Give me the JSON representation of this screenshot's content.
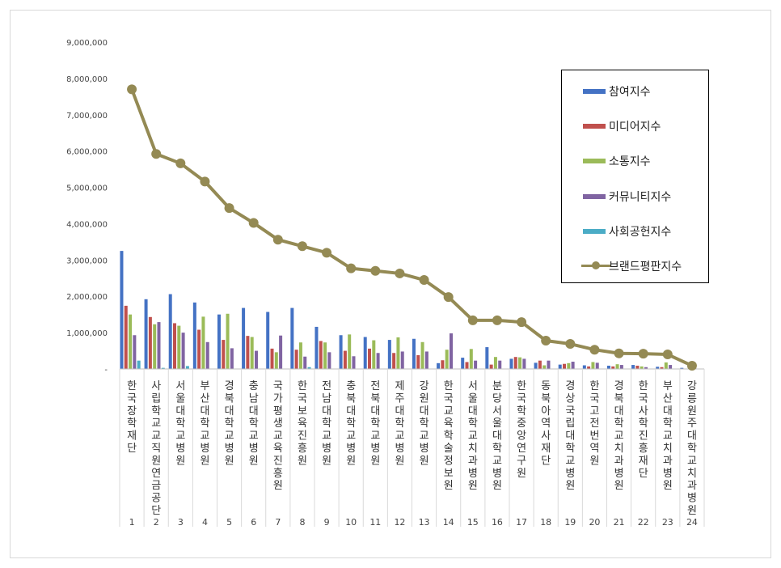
{
  "chart_data": {
    "type": "bar",
    "categories": [
      "1",
      "2",
      "3",
      "4",
      "5",
      "6",
      "7",
      "8",
      "9",
      "10",
      "11",
      "12",
      "13",
      "14",
      "15",
      "16",
      "17",
      "18",
      "19",
      "20",
      "21",
      "22",
      "23",
      "24"
    ],
    "category_names": [
      "한국장학재단",
      "사립학교교직원연금공단",
      "서울대학교병원",
      "부산대학교병원",
      "경북대학교병원",
      "충남대학교병원",
      "국가평생교육진흥원",
      "한국보육진흥원",
      "전남대학교병원",
      "충북대학교병원",
      "전북대학교병원",
      "제주대학교병원",
      "강원대학교병원",
      "한국교육학술정보원",
      "서울대학교치과병원",
      "분당서울대학교병원",
      "한국학중앙연구원",
      "동북아역사재단",
      "경상국립대학교병원",
      "한국고전번역원",
      "경북대학교치과병원",
      "한국사학진흥재단",
      "부산대학교치과병원",
      "강릉원주대학교치과병원"
    ],
    "ylim": [
      0,
      9000000
    ],
    "yticks": [
      "-",
      "1,000,000",
      "2,000,000",
      "3,000,000",
      "4,000,000",
      "5,000,000",
      "6,000,000",
      "7,000,000",
      "8,000,000",
      "9,000,000"
    ],
    "legend_position": "right",
    "series": [
      {
        "name": "참여지수",
        "color": "#4472C4",
        "type": "bar",
        "values": [
          3250000,
          1920000,
          2060000,
          1830000,
          1500000,
          1680000,
          1570000,
          1680000,
          1160000,
          930000,
          880000,
          800000,
          830000,
          160000,
          310000,
          600000,
          280000,
          170000,
          120000,
          100000,
          90000,
          110000,
          60000,
          30000
        ]
      },
      {
        "name": "미디어지수",
        "color": "#C0504D",
        "type": "bar",
        "values": [
          1740000,
          1430000,
          1260000,
          1080000,
          800000,
          910000,
          560000,
          530000,
          770000,
          500000,
          560000,
          440000,
          380000,
          240000,
          190000,
          120000,
          330000,
          230000,
          140000,
          70000,
          70000,
          90000,
          50000,
          10000
        ]
      },
      {
        "name": "소통지수",
        "color": "#9BBB59",
        "type": "bar",
        "values": [
          1500000,
          1230000,
          1190000,
          1440000,
          1520000,
          880000,
          460000,
          730000,
          730000,
          950000,
          790000,
          870000,
          740000,
          530000,
          550000,
          330000,
          320000,
          100000,
          160000,
          190000,
          130000,
          70000,
          180000,
          40000
        ]
      },
      {
        "name": "커뮤니티지수",
        "color": "#8064A2",
        "type": "bar",
        "values": [
          930000,
          1290000,
          1000000,
          740000,
          570000,
          500000,
          920000,
          340000,
          460000,
          350000,
          440000,
          480000,
          480000,
          980000,
          230000,
          230000,
          280000,
          230000,
          200000,
          170000,
          110000,
          50000,
          110000,
          20000
        ]
      },
      {
        "name": "사회공헌지수",
        "color": "#4BACC6",
        "type": "bar",
        "values": [
          230000,
          30000,
          80000,
          10000,
          10000,
          10000,
          10000,
          50000,
          10000,
          10000,
          10000,
          10000,
          10000,
          10000,
          10000,
          10000,
          10000,
          10000,
          10000,
          10000,
          10000,
          10000,
          10000,
          10000
        ]
      },
      {
        "name": "브랜드평판지수",
        "color": "#948A54",
        "type": "line",
        "values": [
          7700000,
          5920000,
          5660000,
          5160000,
          4430000,
          4020000,
          3560000,
          3380000,
          3200000,
          2770000,
          2700000,
          2630000,
          2450000,
          1980000,
          1340000,
          1340000,
          1290000,
          780000,
          690000,
          530000,
          430000,
          420000,
          400000,
          90000
        ]
      }
    ]
  }
}
